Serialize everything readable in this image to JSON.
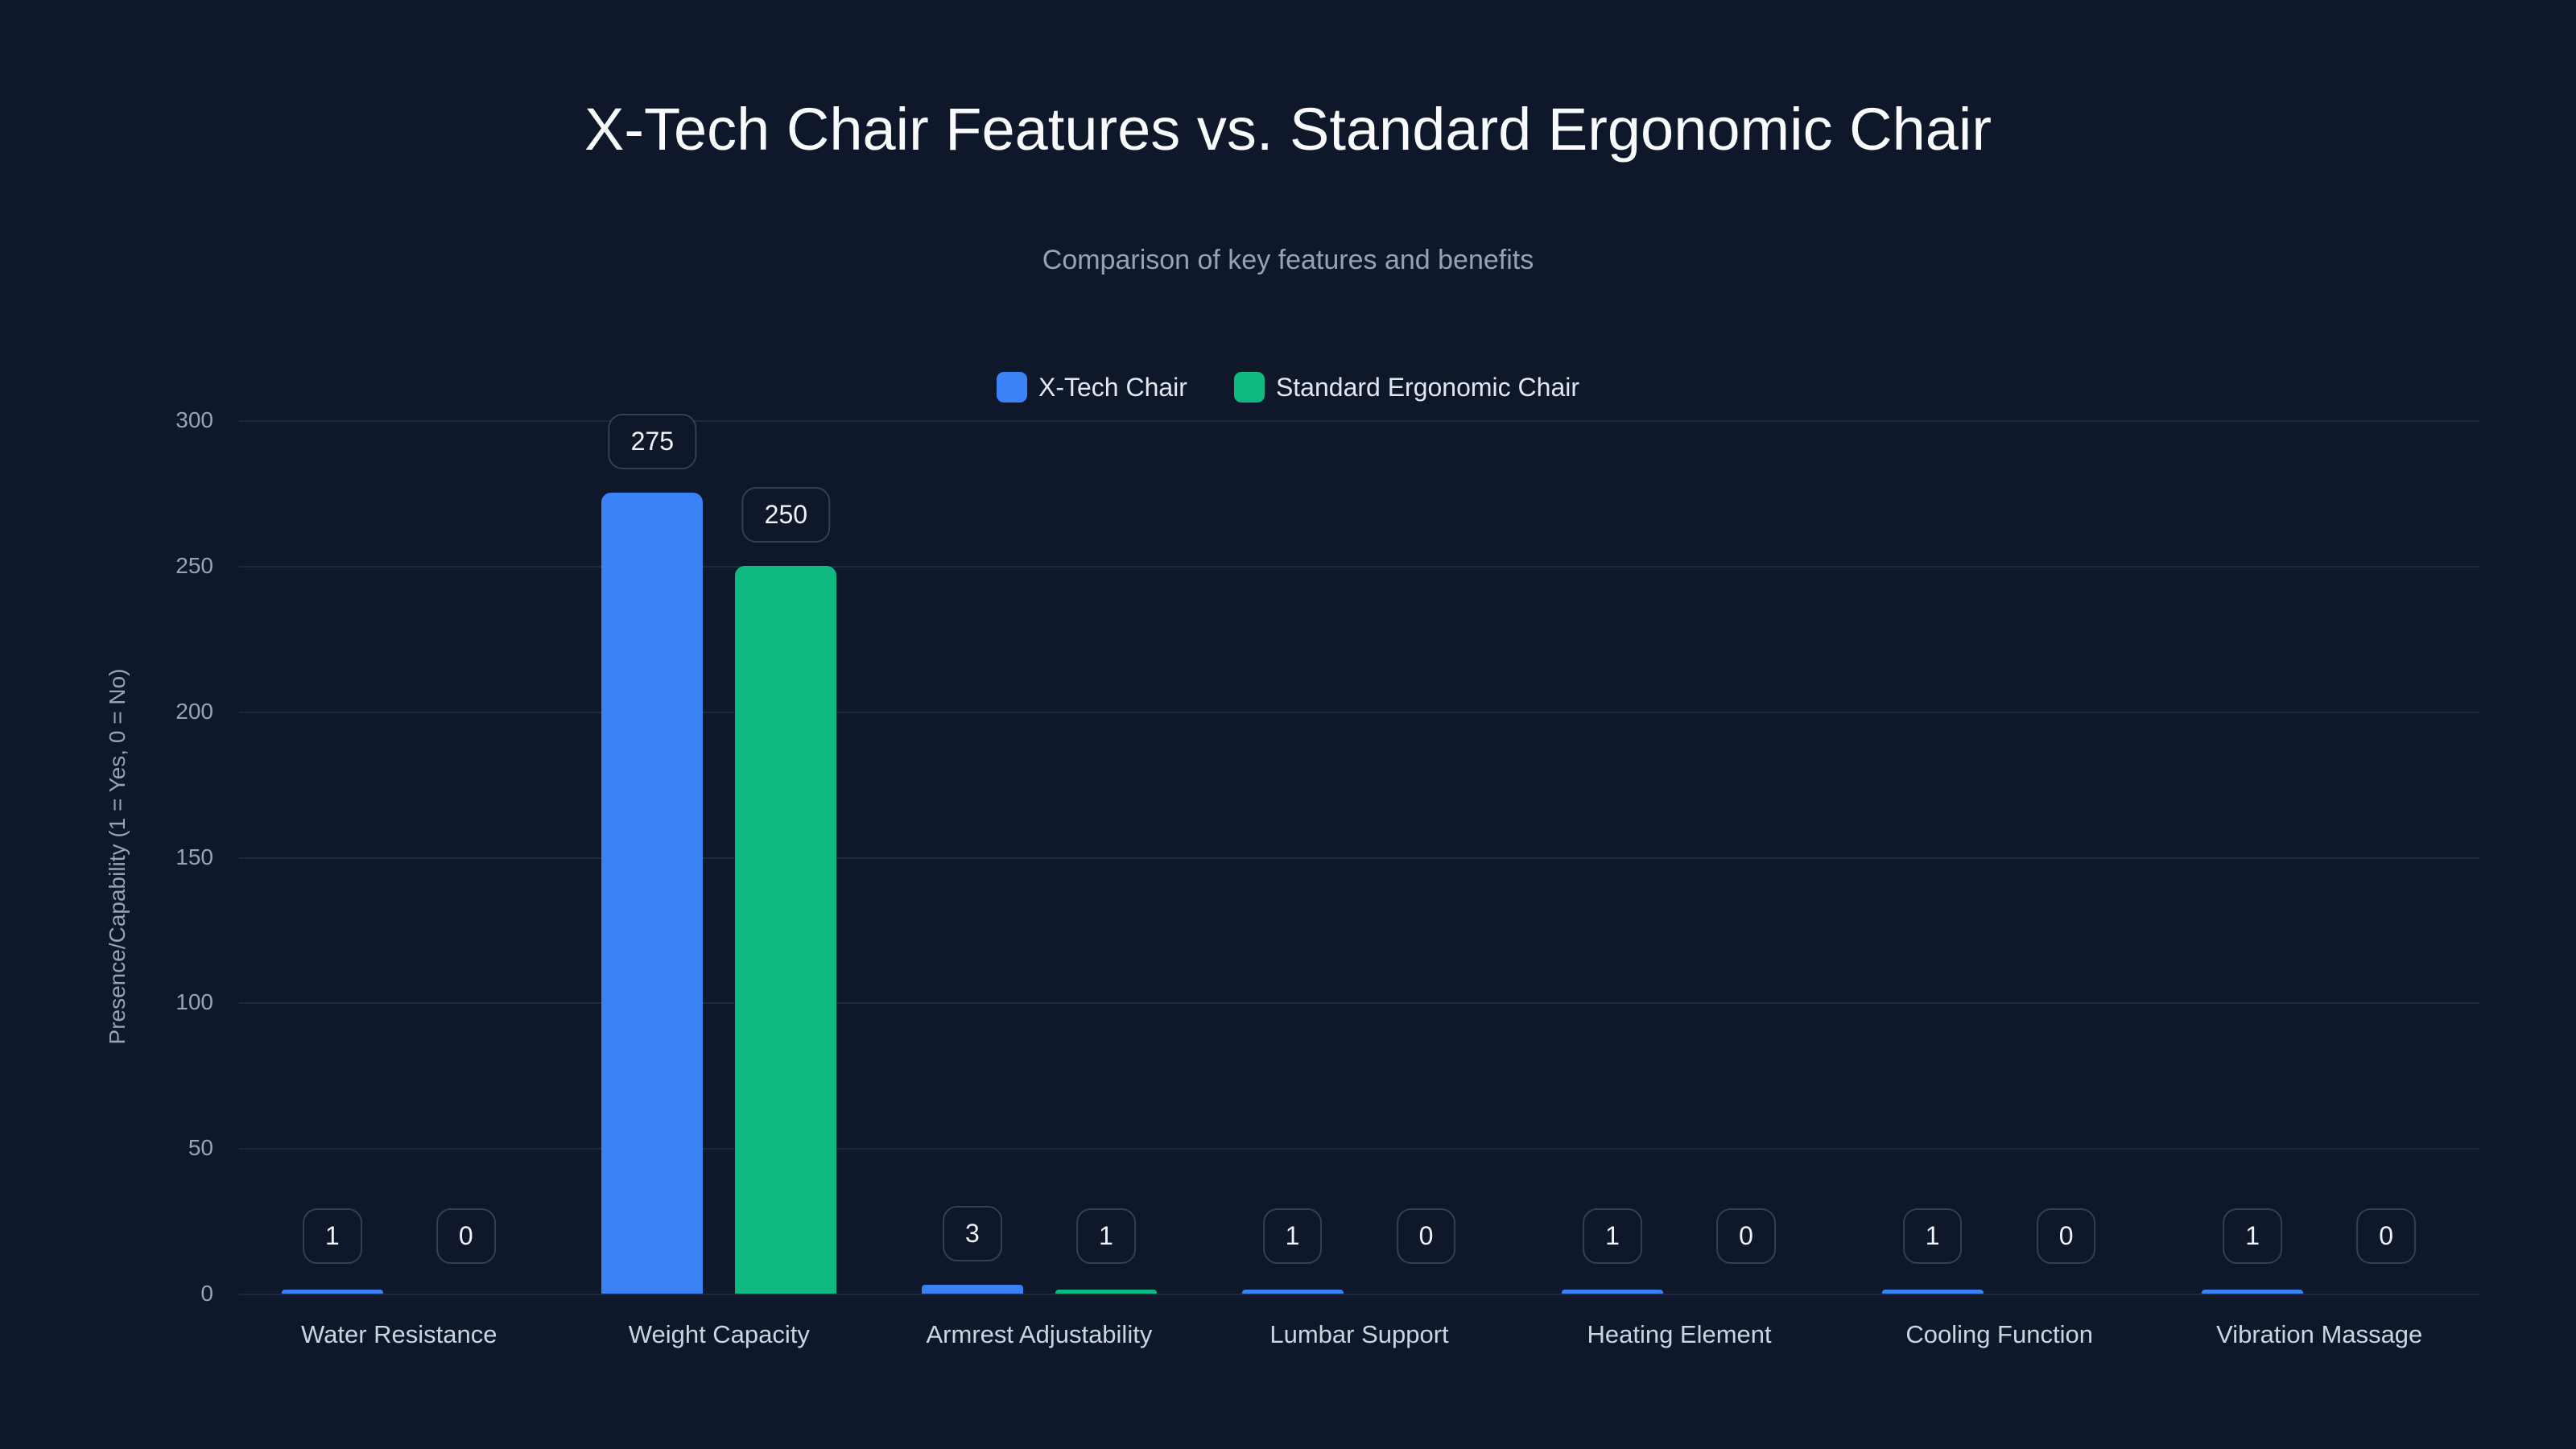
{
  "chart_data": {
    "type": "bar",
    "title": "X-Tech Chair Features vs. Standard Ergonomic Chair",
    "subtitle": "Comparison of key features and benefits",
    "xlabel": "",
    "ylabel": "Presence/Capability (1 = Yes, 0 = No)",
    "ylim": [
      0,
      300
    ],
    "yticks": [
      0,
      50,
      100,
      150,
      200,
      250,
      300
    ],
    "grid": true,
    "legend_position": "top-center",
    "categories": [
      "Water Resistance",
      "Weight Capacity",
      "Armrest Adjustability",
      "Lumbar Support",
      "Heating Element",
      "Cooling Function",
      "Vibration Massage"
    ],
    "series": [
      {
        "name": "X-Tech Chair",
        "color": "#3b82f6",
        "values": [
          1,
          275,
          3,
          1,
          1,
          1,
          1
        ]
      },
      {
        "name": "Standard Ergonomic Chair",
        "color": "#10b981",
        "values": [
          0,
          250,
          1,
          0,
          0,
          0,
          0
        ]
      }
    ]
  },
  "colors": {
    "background": "#0f172a",
    "grid": "#1e293b",
    "label_border": "#334155"
  }
}
